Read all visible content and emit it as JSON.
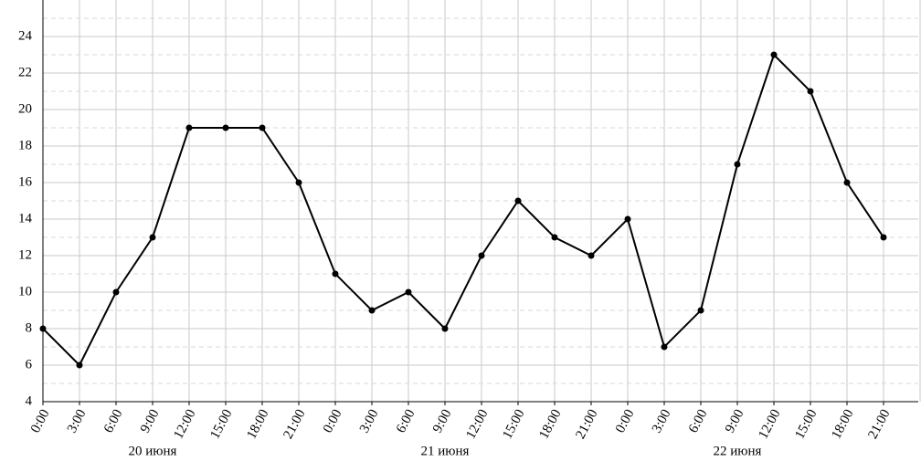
{
  "chart_data": {
    "type": "line",
    "categories": [
      "0:00",
      "3:00",
      "6:00",
      "9:00",
      "12:00",
      "15:00",
      "18:00",
      "21:00",
      "0:00",
      "3:00",
      "6:00",
      "9:00",
      "12:00",
      "15:00",
      "18:00",
      "21:00",
      "0:00",
      "3:00",
      "6:00",
      "9:00",
      "12:00",
      "15:00",
      "18:00",
      "21:00"
    ],
    "groups": [
      "20 июня",
      "21 июня",
      "22 июня"
    ],
    "series": [
      {
        "color": "#000000",
        "values": [
          8,
          6,
          10,
          13,
          19,
          19,
          19,
          16,
          11,
          9,
          10,
          8,
          12,
          15,
          13,
          12,
          14,
          7,
          9,
          17,
          23,
          21,
          16,
          13
        ]
      }
    ],
    "ylim": [
      4,
      26
    ],
    "yticks": [
      4,
      6,
      8,
      10,
      12,
      14,
      16,
      18,
      20,
      22,
      24
    ],
    "grid": true,
    "minor_grid": true
  }
}
